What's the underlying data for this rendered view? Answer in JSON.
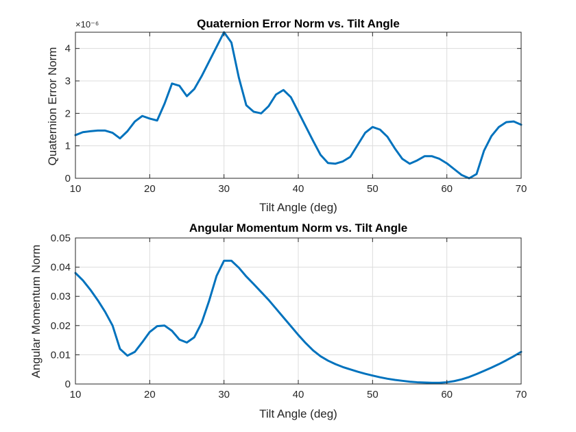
{
  "figure": {
    "line_color": "#0072BD"
  },
  "chart_data": [
    {
      "type": "line",
      "title": "Quaternion Error Norm vs. Tilt Angle",
      "xlabel": "Tilt Angle (deg)",
      "ylabel": "Quaternion Error Norm",
      "exponent_label": "×10⁻⁶",
      "xlim": [
        10,
        70
      ],
      "ylim": [
        0,
        4.5
      ],
      "xticks": [
        10,
        20,
        30,
        40,
        50,
        60,
        70
      ],
      "yticks": [
        0,
        1,
        2,
        3,
        4
      ],
      "grid": true,
      "x": [
        10,
        11,
        12,
        13,
        14,
        15,
        16,
        17,
        18,
        19,
        20,
        21,
        22,
        23,
        24,
        25,
        26,
        27,
        28,
        29,
        30,
        31,
        32,
        33,
        34,
        35,
        36,
        37,
        38,
        39,
        40,
        41,
        42,
        43,
        44,
        45,
        46,
        47,
        48,
        49,
        50,
        51,
        52,
        53,
        54,
        55,
        56,
        57,
        58,
        59,
        60,
        61,
        62,
        63,
        64,
        65,
        66,
        67,
        68,
        69,
        70
      ],
      "series": [
        {
          "values": [
            1.33,
            1.42,
            1.45,
            1.47,
            1.47,
            1.4,
            1.23,
            1.45,
            1.75,
            1.92,
            1.84,
            1.78,
            2.3,
            2.92,
            2.85,
            2.53,
            2.75,
            3.15,
            3.6,
            4.05,
            4.5,
            4.18,
            3.1,
            2.25,
            2.05,
            2.0,
            2.22,
            2.58,
            2.72,
            2.5,
            2.05,
            1.6,
            1.15,
            0.72,
            0.47,
            0.45,
            0.52,
            0.66,
            1.03,
            1.4,
            1.58,
            1.5,
            1.28,
            0.92,
            0.6,
            0.45,
            0.55,
            0.68,
            0.68,
            0.6,
            0.46,
            0.28,
            0.1,
            0.0,
            0.13,
            0.85,
            1.3,
            1.58,
            1.73,
            1.75,
            1.65
          ]
        }
      ]
    },
    {
      "type": "line",
      "title": "Angular Momentum Norm vs. Tilt Angle",
      "xlabel": "Tilt Angle (deg)",
      "ylabel": "Angular Momentum Norm",
      "xlim": [
        10,
        70
      ],
      "ylim": [
        0,
        0.05
      ],
      "xticks": [
        10,
        20,
        30,
        40,
        50,
        60,
        70
      ],
      "yticks": [
        0,
        0.01,
        0.02,
        0.03,
        0.04,
        0.05
      ],
      "ytick_labels": [
        "0",
        "0.01",
        "0.02",
        "0.03",
        "0.04",
        "0.05"
      ],
      "grid": true,
      "x": [
        10,
        11,
        12,
        13,
        14,
        15,
        16,
        17,
        18,
        19,
        20,
        21,
        22,
        23,
        24,
        25,
        26,
        27,
        28,
        29,
        30,
        31,
        32,
        33,
        34,
        35,
        36,
        37,
        38,
        39,
        40,
        41,
        42,
        43,
        44,
        45,
        46,
        47,
        48,
        49,
        50,
        51,
        52,
        53,
        54,
        55,
        56,
        57,
        58,
        59,
        60,
        61,
        62,
        63,
        64,
        65,
        66,
        67,
        68,
        69,
        70
      ],
      "series": [
        {
          "values": [
            0.038,
            0.0355,
            0.0323,
            0.0287,
            0.0247,
            0.02,
            0.012,
            0.0097,
            0.011,
            0.0143,
            0.0178,
            0.0198,
            0.02,
            0.0182,
            0.0152,
            0.0142,
            0.016,
            0.021,
            0.0285,
            0.037,
            0.0422,
            0.0422,
            0.0398,
            0.0368,
            0.0342,
            0.0315,
            0.0288,
            0.0258,
            0.0228,
            0.0198,
            0.0168,
            0.014,
            0.0115,
            0.0095,
            0.008,
            0.0068,
            0.0058,
            0.005,
            0.0042,
            0.0035,
            0.0029,
            0.0023,
            0.0018,
            0.0014,
            0.0011,
            0.0008,
            0.0006,
            0.0005,
            0.0004,
            0.0004,
            0.0006,
            0.001,
            0.0016,
            0.0024,
            0.0034,
            0.0045,
            0.0056,
            0.0068,
            0.0081,
            0.0095,
            0.011
          ]
        }
      ]
    }
  ]
}
